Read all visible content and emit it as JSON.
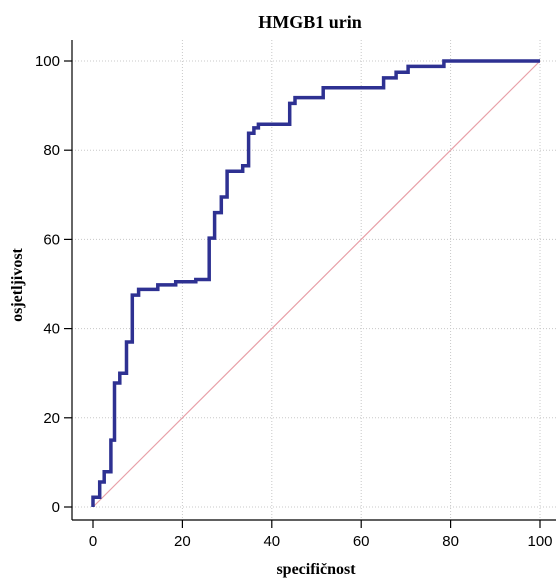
{
  "chart_data": {
    "type": "line",
    "title": "HMGB1 urin",
    "xlabel": "specifičnost",
    "ylabel": "osjetljivost",
    "xlim": [
      0,
      100
    ],
    "ylim": [
      0,
      100
    ],
    "grid": true,
    "x_ticks": [
      0,
      20,
      40,
      60,
      80,
      100
    ],
    "y_ticks": [
      0,
      20,
      40,
      60,
      80,
      100
    ],
    "x_tick_labels": [
      "0",
      "20",
      "40",
      "60",
      "80",
      "100"
    ],
    "y_tick_labels": [
      "0",
      "20",
      "40",
      "60",
      "80",
      "100"
    ],
    "series": [
      {
        "style": "step",
        "color": "#2e3192",
        "x": [
          0,
          0,
          1.5,
          1.5,
          2.5,
          2.5,
          4.0,
          4.0,
          4.8,
          4.8,
          6.0,
          6.0,
          7.5,
          7.5,
          8.8,
          8.8,
          10.2,
          10.2,
          14.5,
          14.5,
          18.5,
          18.5,
          23.0,
          23.0,
          26.0,
          26.0,
          27.2,
          27.2,
          28.7,
          28.7,
          30.0,
          30.0,
          33.5,
          33.5,
          34.8,
          34.8,
          36.0,
          36.0,
          37.0,
          37.0,
          44.0,
          44.0,
          45.2,
          45.2,
          51.5,
          51.5,
          65.0,
          65.0,
          67.8,
          67.8,
          70.5,
          70.5,
          78.5,
          78.5,
          100
        ],
        "y": [
          0,
          2.2,
          2.2,
          5.6,
          5.6,
          7.9,
          7.9,
          15.0,
          15.0,
          27.8,
          27.8,
          30.0,
          30.0,
          37.0,
          37.0,
          47.5,
          47.5,
          48.8,
          48.8,
          49.8,
          49.8,
          50.5,
          50.5,
          51.0,
          51.0,
          60.3,
          60.3,
          66.0,
          66.0,
          69.5,
          69.5,
          75.3,
          75.3,
          76.5,
          76.5,
          83.8,
          83.8,
          85.0,
          85.0,
          85.8,
          85.8,
          90.5,
          90.5,
          91.8,
          91.8,
          94.0,
          94.0,
          96.2,
          96.2,
          97.5,
          97.5,
          98.8,
          98.8,
          100,
          100
        ]
      },
      {
        "style": "diagonal",
        "color": "#e8a0a8",
        "x": [
          0,
          100
        ],
        "y": [
          0,
          100
        ]
      }
    ]
  }
}
